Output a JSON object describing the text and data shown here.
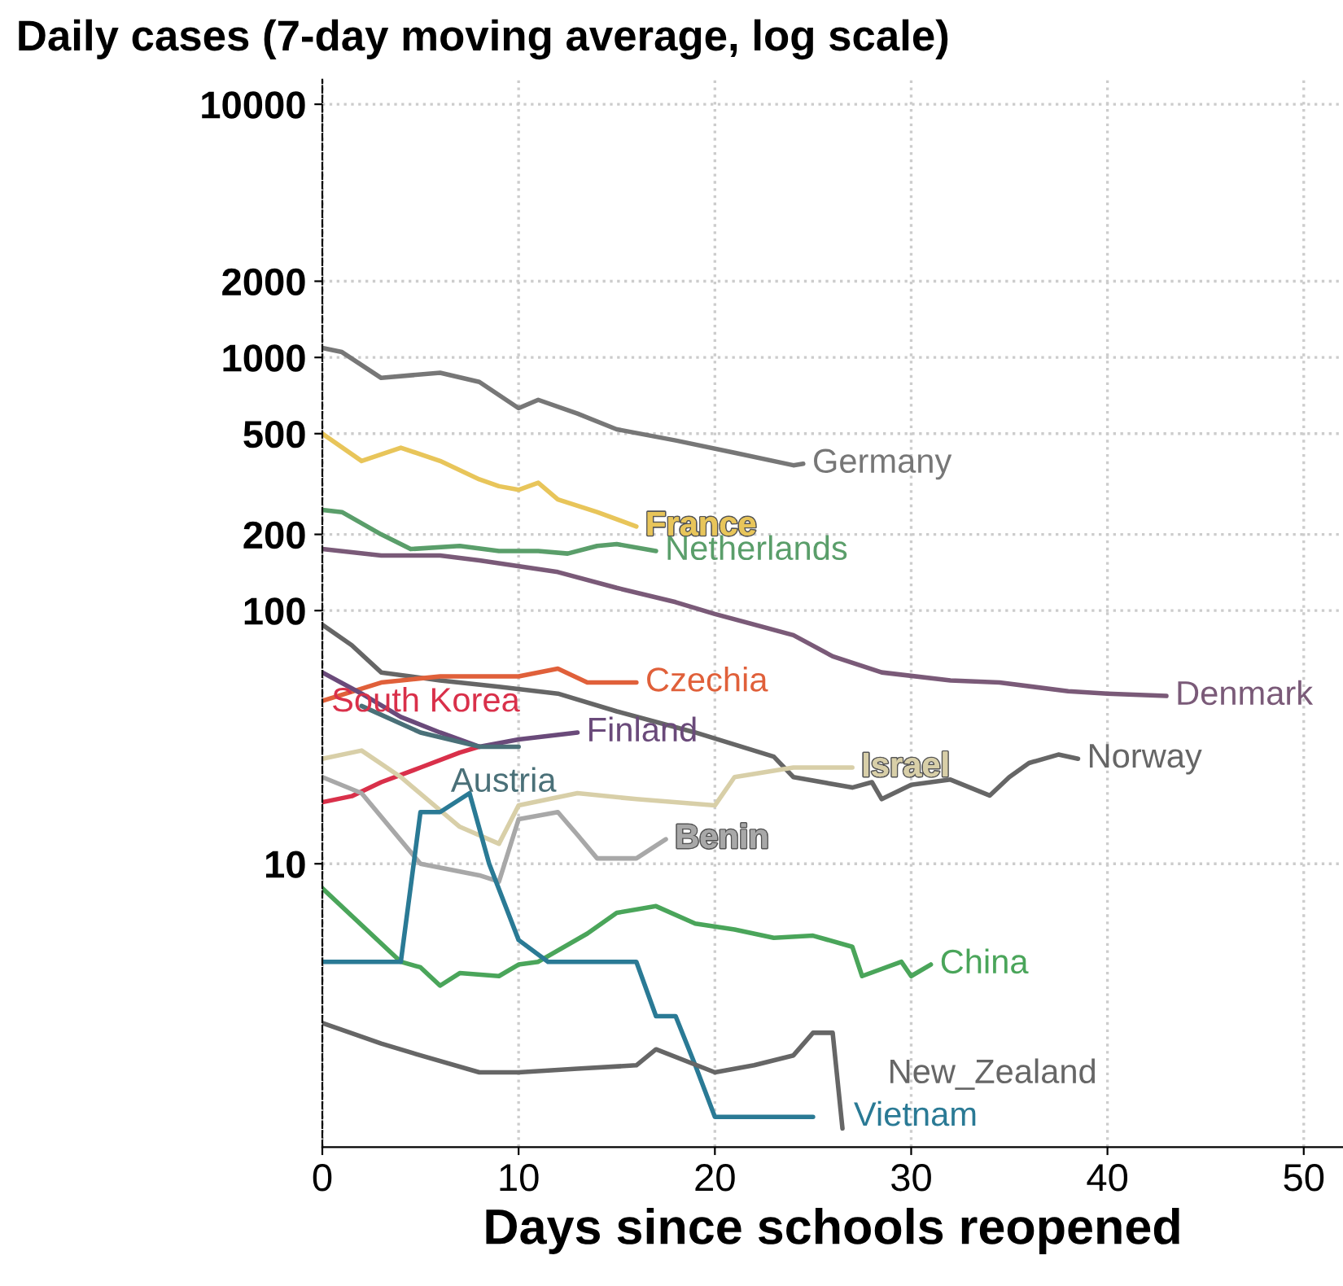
{
  "chart_data": {
    "type": "line",
    "title": "Daily cases (7-day moving average, log scale)",
    "xlabel": "Days since schools reopened",
    "log": "y",
    "grid": true,
    "xlim": [
      0,
      52
    ],
    "xticks": [
      0,
      10,
      20,
      30,
      40,
      50
    ],
    "ylim": [
      0.76,
      12500
    ],
    "yticks": [
      10,
      100,
      200,
      500,
      1000,
      2000,
      10000
    ],
    "series": [
      {
        "name": "Germany",
        "color": "#777777",
        "x": [
          0,
          1,
          3,
          6,
          8,
          10,
          11,
          13,
          15,
          18,
          21,
          24,
          24.5
        ],
        "values": [
          1090,
          1050,
          830,
          870,
          800,
          630,
          680,
          600,
          520,
          470,
          420,
          375,
          380
        ]
      },
      {
        "name": "France",
        "color": "#e8c55a",
        "x": [
          0,
          2,
          4,
          6,
          8,
          9,
          10,
          11,
          12,
          14,
          16
        ],
        "values": [
          500,
          390,
          440,
          390,
          330,
          310,
          300,
          320,
          275,
          245,
          215
        ]
      },
      {
        "name": "Netherlands",
        "color": "#5a9e6a",
        "x": [
          0,
          1,
          3,
          4.5,
          7,
          9,
          11,
          12.5,
          14,
          15,
          17
        ],
        "values": [
          250,
          245,
          200,
          175,
          180,
          172,
          172,
          168,
          180,
          183,
          172
        ]
      },
      {
        "name": "Denmark",
        "color": "#7a5a78",
        "x": [
          0,
          3,
          6,
          8,
          12,
          15,
          18,
          20,
          24,
          26,
          28.5,
          32,
          34.5,
          38,
          40,
          43
        ],
        "values": [
          175,
          165,
          165,
          158,
          142,
          123,
          108,
          97,
          80,
          66,
          57,
          53,
          52,
          48,
          47,
          46
        ]
      },
      {
        "name": "Norway",
        "color": "#666666",
        "x": [
          0,
          1.5,
          3,
          6,
          9,
          12,
          15,
          19,
          23,
          24,
          27,
          28,
          28.5,
          30,
          32,
          34,
          35,
          36,
          37.5,
          38.5
        ],
        "values": [
          88,
          73,
          57,
          53,
          50,
          47,
          40,
          33,
          26.5,
          22,
          20,
          21,
          18,
          20.5,
          21.5,
          18.6,
          22,
          25,
          27,
          26
        ]
      },
      {
        "name": "Czechia",
        "color": "#e0603a",
        "x": [
          0,
          3,
          6,
          10,
          12,
          13.5,
          16
        ],
        "values": [
          44,
          52,
          55,
          55,
          59,
          52,
          52
        ]
      },
      {
        "name": "South Korea",
        "color": "#d9304a",
        "x": [
          0,
          1.5,
          3,
          5,
          7,
          8
        ],
        "values": [
          17.5,
          18.5,
          21,
          24,
          27.5,
          29
        ]
      },
      {
        "name": "Finland",
        "color": "#6a4a7a",
        "x": [
          0,
          2,
          4,
          6,
          8,
          10,
          13
        ],
        "values": [
          57,
          47,
          38,
          33,
          29,
          31,
          33
        ]
      },
      {
        "name": "Austria",
        "color": "#4a7078",
        "x": [
          2,
          5,
          8,
          10
        ],
        "values": [
          42,
          33,
          29,
          29
        ]
      },
      {
        "name": "Israel",
        "color": "#d8cfa8",
        "x": [
          0,
          2,
          4,
          7,
          9,
          10,
          13,
          16,
          20,
          21,
          24,
          27
        ],
        "values": [
          26,
          28,
          22,
          14,
          12,
          17,
          19,
          18,
          17,
          22,
          24,
          24
        ]
      },
      {
        "name": "Benin",
        "color": "#a8a8a8",
        "x": [
          0,
          2,
          5,
          8,
          9,
          10,
          12,
          13,
          14,
          16,
          17.5
        ],
        "values": [
          22,
          19,
          10,
          9,
          8.5,
          15,
          16,
          13,
          10.5,
          10.5,
          12.5
        ]
      },
      {
        "name": "China",
        "color": "#4aa55a",
        "x": [
          0,
          4,
          5,
          6,
          7,
          9,
          10,
          11,
          13.5,
          15,
          17,
          19,
          21,
          23,
          25,
          27,
          27.5,
          29.5,
          30,
          31
        ],
        "values": [
          8,
          4.1,
          3.9,
          3.3,
          3.7,
          3.6,
          4.0,
          4.1,
          5.3,
          6.4,
          6.8,
          5.8,
          5.5,
          5.1,
          5.2,
          4.7,
          3.6,
          4.1,
          3.6,
          4.0
        ]
      },
      {
        "name": "Vietnam",
        "color": "#2a7a95",
        "x": [
          0,
          4,
          5,
          6,
          7.5,
          8.5,
          10,
          11.5,
          16,
          17,
          18,
          19,
          20,
          25
        ],
        "values": [
          4.1,
          4.1,
          16,
          16,
          19,
          10,
          5,
          4.1,
          4.1,
          2.5,
          2.5,
          1.6,
          1.0,
          1.0
        ]
      },
      {
        "name": "New_Zealand",
        "color": "#666666",
        "x": [
          0,
          3,
          5,
          8,
          10,
          13,
          16,
          17,
          20,
          22,
          24,
          25,
          26,
          26.5
        ],
        "values": [
          2.35,
          1.95,
          1.75,
          1.5,
          1.5,
          1.55,
          1.6,
          1.85,
          1.5,
          1.6,
          1.75,
          2.15,
          2.15,
          0.9
        ]
      }
    ]
  }
}
